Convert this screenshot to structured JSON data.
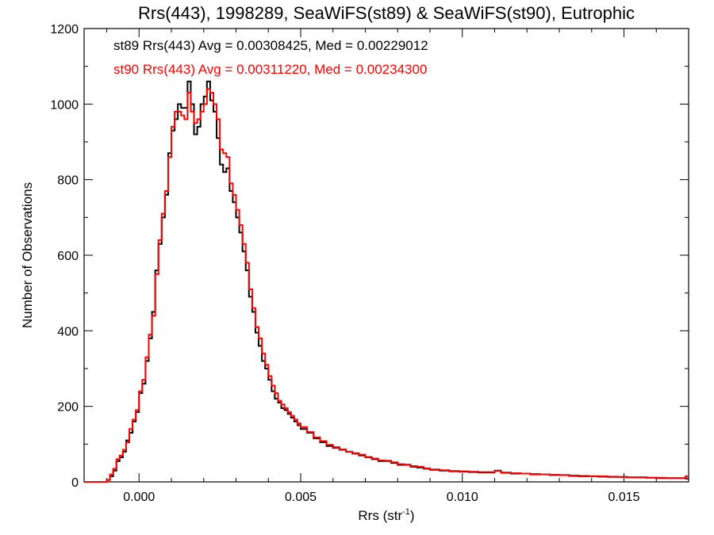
{
  "chart_data": {
    "type": "histogram-step",
    "title": "Rrs(443), 1998289, SeaWiFS(st89) & SeaWiFS(st90), Eutrophic",
    "xlabel_main": "Rrs (str",
    "xlabel_sup": "-1",
    "xlabel_end": ")",
    "ylabel": "Number of Observations",
    "xlim": [
      -0.0017,
      0.017
    ],
    "ylim": [
      0,
      1200
    ],
    "xticks": [
      0.0,
      0.005,
      0.01,
      0.015
    ],
    "xtick_labels": [
      "0.000",
      "0.005",
      "0.010",
      "0.015"
    ],
    "yticks": [
      0,
      200,
      400,
      600,
      800,
      1000,
      1200
    ],
    "ytick_labels": [
      "0",
      "200",
      "400",
      "600",
      "800",
      "1000",
      "1200"
    ],
    "grid": false,
    "bin_width": 0.0001,
    "annotations": [
      {
        "text": "st89 Rrs(443) Avg = 0.00308425, Med = 0.00229012",
        "color": "#000000"
      },
      {
        "text": "st90 Rrs(443) Avg = 0.00311220, Med = 0.00234300",
        "color": "#ff0000"
      }
    ],
    "series": [
      {
        "color": "#000000",
        "x": [
          -0.0017,
          -0.0016,
          -0.0015,
          -0.0014,
          -0.0013,
          -0.0012,
          -0.0011,
          -0.001,
          -0.0009,
          -0.0008,
          -0.0007,
          -0.0006,
          -0.0005,
          -0.0004,
          -0.0003,
          -0.0002,
          -0.0001,
          0.0,
          0.0001,
          0.0002,
          0.0003,
          0.0004,
          0.0005,
          0.0006,
          0.0007,
          0.0008,
          0.0009,
          0.001,
          0.0011,
          0.0012,
          0.0013,
          0.0014,
          0.0015,
          0.0016,
          0.0017,
          0.0018,
          0.0019,
          0.002,
          0.0021,
          0.0022,
          0.0023,
          0.0024,
          0.0025,
          0.0026,
          0.0027,
          0.0028,
          0.0029,
          0.003,
          0.0031,
          0.0032,
          0.0033,
          0.0034,
          0.0035,
          0.0036,
          0.0037,
          0.0038,
          0.0039,
          0.004,
          0.0041,
          0.0042,
          0.0043,
          0.0044,
          0.0045,
          0.0046,
          0.0047,
          0.0048,
          0.0049,
          0.005,
          0.0052,
          0.0054,
          0.0056,
          0.0058,
          0.006,
          0.0062,
          0.0064,
          0.0066,
          0.0068,
          0.007,
          0.0072,
          0.0074,
          0.0076,
          0.0078,
          0.008,
          0.0082,
          0.0084,
          0.0086,
          0.0088,
          0.009,
          0.0093,
          0.0096,
          0.0099,
          0.0102,
          0.0105,
          0.0108,
          0.011,
          0.0112,
          0.0115,
          0.0118,
          0.0121,
          0.0124,
          0.0127,
          0.013,
          0.0133,
          0.0136,
          0.0139,
          0.0142,
          0.0145,
          0.0148,
          0.0151,
          0.0154,
          0.0157,
          0.016,
          0.0163,
          0.0166,
          0.0169
        ],
        "y": [
          0,
          0,
          0,
          0,
          0,
          0,
          0,
          5,
          15,
          30,
          55,
          65,
          80,
          110,
          130,
          160,
          185,
          235,
          260,
          320,
          380,
          450,
          560,
          630,
          700,
          760,
          870,
          930,
          960,
          1000,
          990,
          990,
          1060,
          1000,
          920,
          940,
          1000,
          1020,
          1060,
          1010,
          980,
          910,
          840,
          820,
          830,
          770,
          740,
          700,
          660,
          610,
          560,
          490,
          450,
          395,
          360,
          320,
          300,
          270,
          240,
          220,
          210,
          195,
          190,
          180,
          170,
          160,
          150,
          140,
          130,
          115,
          105,
          95,
          90,
          85,
          80,
          75,
          70,
          65,
          60,
          55,
          55,
          50,
          45,
          45,
          40,
          38,
          35,
          32,
          30,
          28,
          27,
          26,
          25,
          25,
          30,
          24,
          22,
          22,
          20,
          20,
          18,
          18,
          16,
          15,
          15,
          14,
          13,
          13,
          12,
          12,
          11,
          10,
          10,
          10,
          9
        ]
      },
      {
        "color": "#ff0000",
        "x": [
          -0.0017,
          -0.0016,
          -0.0015,
          -0.0014,
          -0.0013,
          -0.0012,
          -0.0011,
          -0.001,
          -0.0009,
          -0.0008,
          -0.0007,
          -0.0006,
          -0.0005,
          -0.0004,
          -0.0003,
          -0.0002,
          -0.0001,
          0.0,
          0.0001,
          0.0002,
          0.0003,
          0.0004,
          0.0005,
          0.0006,
          0.0007,
          0.0008,
          0.0009,
          0.001,
          0.0011,
          0.0012,
          0.0013,
          0.0014,
          0.0015,
          0.0016,
          0.0017,
          0.0018,
          0.0019,
          0.002,
          0.0021,
          0.0022,
          0.0023,
          0.0024,
          0.0025,
          0.0026,
          0.0027,
          0.0028,
          0.0029,
          0.003,
          0.0031,
          0.0032,
          0.0033,
          0.0034,
          0.0035,
          0.0036,
          0.0037,
          0.0038,
          0.0039,
          0.004,
          0.0041,
          0.0042,
          0.0043,
          0.0044,
          0.0045,
          0.0046,
          0.0047,
          0.0048,
          0.0049,
          0.005,
          0.0052,
          0.0054,
          0.0056,
          0.0058,
          0.006,
          0.0062,
          0.0064,
          0.0066,
          0.0068,
          0.007,
          0.0072,
          0.0074,
          0.0076,
          0.0078,
          0.008,
          0.0082,
          0.0084,
          0.0086,
          0.0088,
          0.009,
          0.0093,
          0.0096,
          0.0099,
          0.0102,
          0.0105,
          0.0108,
          0.011,
          0.0112,
          0.0115,
          0.0118,
          0.0121,
          0.0124,
          0.0127,
          0.013,
          0.0133,
          0.0136,
          0.0139,
          0.0142,
          0.0145,
          0.0148,
          0.0151,
          0.0154,
          0.0157,
          0.016,
          0.0163,
          0.0166,
          0.0169
        ],
        "y": [
          0,
          0,
          0,
          0,
          0,
          0,
          0,
          5,
          20,
          35,
          60,
          70,
          85,
          105,
          140,
          165,
          190,
          240,
          270,
          330,
          390,
          440,
          550,
          640,
          710,
          770,
          860,
          940,
          980,
          980,
          970,
          960,
          1030,
          980,
          950,
          960,
          980,
          1000,
          1040,
          1030,
          1000,
          960,
          880,
          870,
          860,
          790,
          760,
          720,
          680,
          630,
          580,
          510,
          460,
          410,
          380,
          340,
          310,
          280,
          255,
          235,
          215,
          205,
          195,
          185,
          175,
          165,
          155,
          145,
          132,
          118,
          108,
          98,
          92,
          86,
          80,
          76,
          72,
          66,
          62,
          57,
          56,
          52,
          47,
          46,
          42,
          40,
          36,
          33,
          31,
          29,
          28,
          27,
          26,
          26,
          29,
          25,
          23,
          22,
          21,
          20,
          19,
          18,
          17,
          16,
          15,
          15,
          14,
          13,
          12,
          12,
          11,
          11,
          10,
          10,
          15
        ]
      }
    ]
  }
}
